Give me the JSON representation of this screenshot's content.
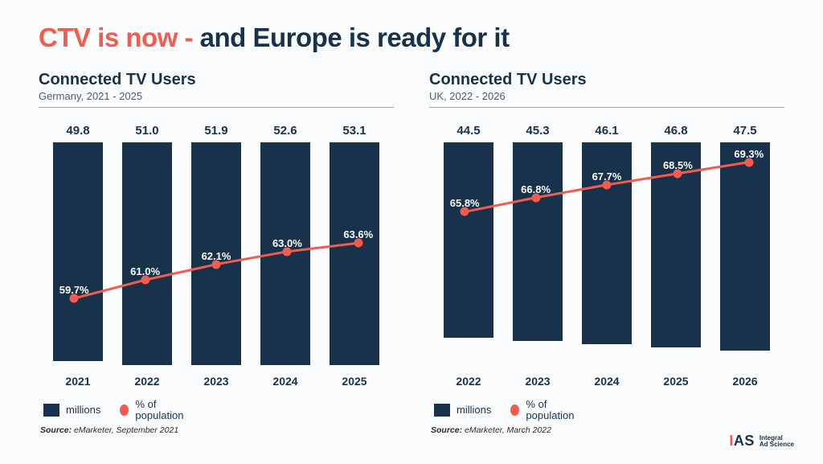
{
  "colors": {
    "accent": "#f45b4e",
    "navy": "#17324a",
    "line": "#f45b4e",
    "bg": "#fbfcfd"
  },
  "headline": {
    "accent": "CTV is now -",
    "rest": " and Europe is ready for it"
  },
  "charts": [
    {
      "title": "Connected TV Users",
      "subtitle": "Germany, 2021 - 2025",
      "type": "bar+line",
      "y_bar_max": 55,
      "y_pct_range": [
        55,
        72
      ],
      "categories": [
        "2021",
        "2022",
        "2023",
        "2024",
        "2025"
      ],
      "bar_values": [
        49.8,
        51.0,
        51.9,
        52.6,
        53.1
      ],
      "pct_values": [
        59.7,
        61.0,
        62.1,
        63.0,
        63.6
      ],
      "pct_labels": [
        "59.7%",
        "61.0%",
        "62.1%",
        "63.0%",
        "63.6%"
      ],
      "legend": {
        "bar": "millions",
        "line": "% of population"
      },
      "source_prefix": "Source:",
      "source": "eMarketer, September 2021"
    },
    {
      "title": "Connected TV Users",
      "subtitle": "UK, 2022 - 2026",
      "type": "bar+line",
      "y_bar_max": 55,
      "y_pct_range": [
        55,
        72
      ],
      "categories": [
        "2022",
        "2023",
        "2024",
        "2025",
        "2026"
      ],
      "bar_values": [
        44.5,
        45.3,
        46.1,
        46.8,
        47.5
      ],
      "pct_values": [
        65.8,
        66.8,
        67.7,
        68.5,
        69.3
      ],
      "pct_labels": [
        "65.8%",
        "66.8%",
        "67.7%",
        "68.5%",
        "69.3%"
      ],
      "legend": {
        "bar": "millions",
        "line": "% of population"
      },
      "source_prefix": "Source:",
      "source": "eMarketer, March 2022"
    }
  ],
  "logo": {
    "mark_i": "I",
    "mark_as": "AS",
    "line1": "Integral",
    "line2": "Ad Science"
  },
  "style": {
    "bar_width_ratio": 0.72,
    "dot_radius": 5.5,
    "line_width": 3,
    "title_fontsize": 33,
    "chart_title_fontsize": 20
  }
}
